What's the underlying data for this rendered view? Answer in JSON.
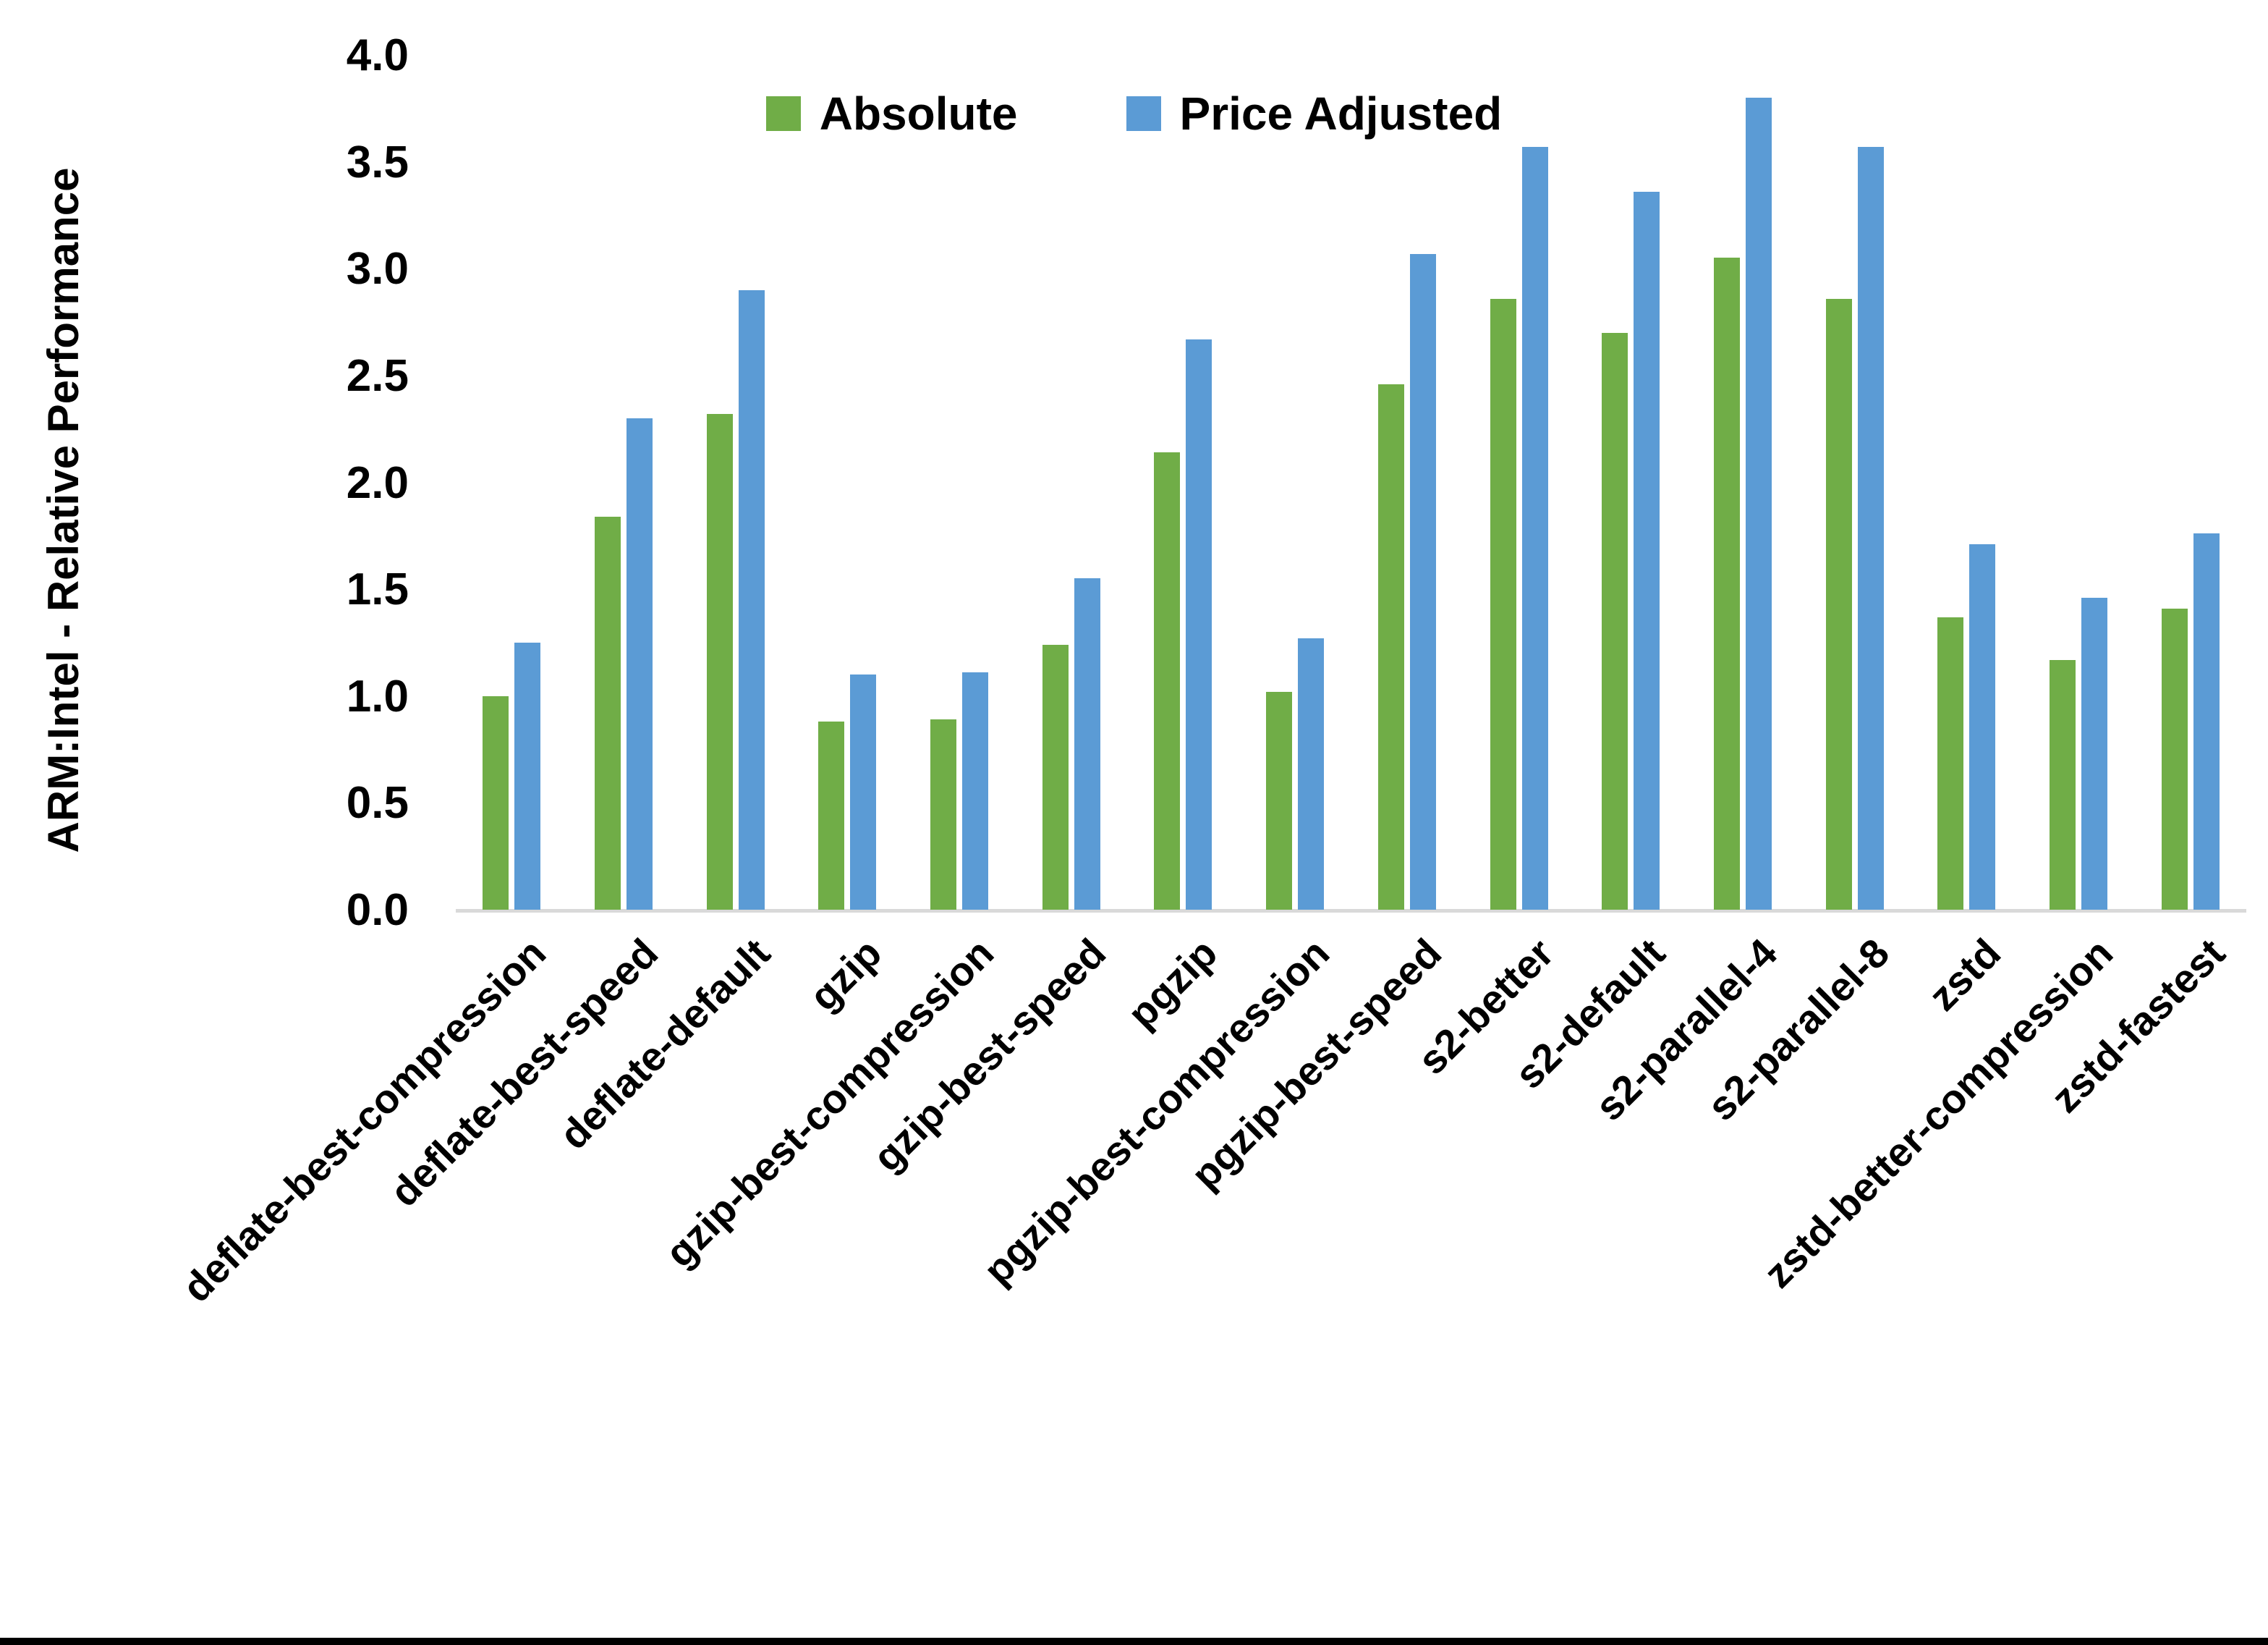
{
  "chart_data": {
    "type": "bar",
    "title": "",
    "xlabel": "",
    "ylabel": "ARM:Intel - Relative Performance",
    "ylim": [
      0.0,
      4.0
    ],
    "ytick_step": 0.5,
    "ytick_labels": [
      "4.0",
      "3.5",
      "3.0",
      "2.5",
      "2.0",
      "1.5",
      "1.0",
      "0.5",
      "0.0"
    ],
    "grid": false,
    "legend_position": "top-center",
    "categories": [
      "deflate-best-compression",
      "deflate-best-speed",
      "deflate-default",
      "gzip",
      "gzip-best-compression",
      "gzip-best-speed",
      "pgzip",
      "pgzip-best-compression",
      "pgzip-best-speed",
      "s2-better",
      "s2-default",
      "s2-parallel-4",
      "s2-parallel-8",
      "zstd",
      "zstd-better-compression",
      "zstd-fastest"
    ],
    "series": [
      {
        "name": "Absolute",
        "color": "#70AD47",
        "values": [
          1.0,
          1.84,
          2.32,
          0.88,
          0.89,
          1.24,
          2.14,
          1.02,
          2.46,
          2.86,
          2.7,
          3.05,
          2.86,
          1.37,
          1.17,
          1.41
        ]
      },
      {
        "name": "Price Adjusted",
        "color": "#5B9BD5",
        "values": [
          1.25,
          2.3,
          2.9,
          1.1,
          1.11,
          1.55,
          2.67,
          1.27,
          3.07,
          3.57,
          3.36,
          3.8,
          3.57,
          1.71,
          1.46,
          1.76
        ]
      }
    ]
  },
  "frame": {
    "background": "#FFFFFF",
    "axis_line_color": "#D9D9D9",
    "bottom_bar_color": "#000000"
  }
}
